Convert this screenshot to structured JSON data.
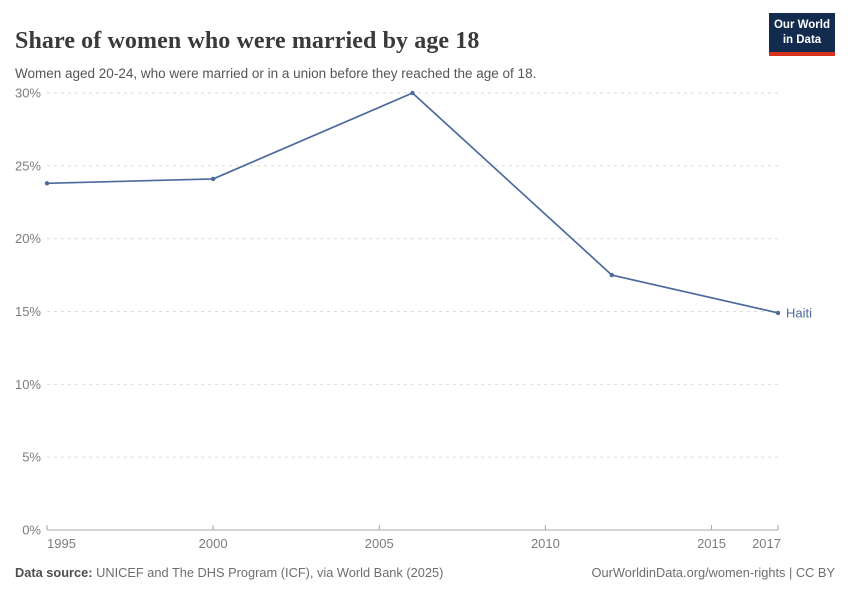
{
  "header": {
    "title": "Share of women who were married by age 18",
    "subtitle": "Women aged 20-24, who were married or in a union before they reached the age of 18.",
    "logo": {
      "line1": "Our World",
      "line2": "in Data"
    }
  },
  "chart_data": {
    "type": "line",
    "title": "Share of women who were married by age 18",
    "subtitle": "Women aged 20-24, who were married or in a union before they reached the age of 18.",
    "series": [
      {
        "name": "Haiti",
        "x": [
          1995,
          2000,
          2006,
          2012,
          2017
        ],
        "values": [
          23.8,
          24.1,
          30.0,
          17.5,
          14.9
        ],
        "color": "#4C6A9C"
      }
    ],
    "xlabel": "",
    "ylabel": "",
    "xlim": [
      1995,
      2017
    ],
    "ylim": [
      0,
      30
    ],
    "x_ticks": [
      1995,
      2000,
      2005,
      2010,
      2015,
      2017
    ],
    "y_ticks": [
      0,
      5,
      10,
      15,
      20,
      25,
      30
    ],
    "y_tick_suffix": "%",
    "grid": "horizontal-dashed",
    "legend_position": "end-of-line-label",
    "colors": {
      "gridline": "#DBDBDB",
      "axis": "#A8A8A8",
      "tick_label": "#7d7d7d"
    }
  },
  "footer": {
    "source_label": "Data source:",
    "source_text": " UNICEF and The DHS Program (ICF), via World Bank (2025)",
    "credit": "OurWorldinData.org/women-rights | CC BY"
  }
}
